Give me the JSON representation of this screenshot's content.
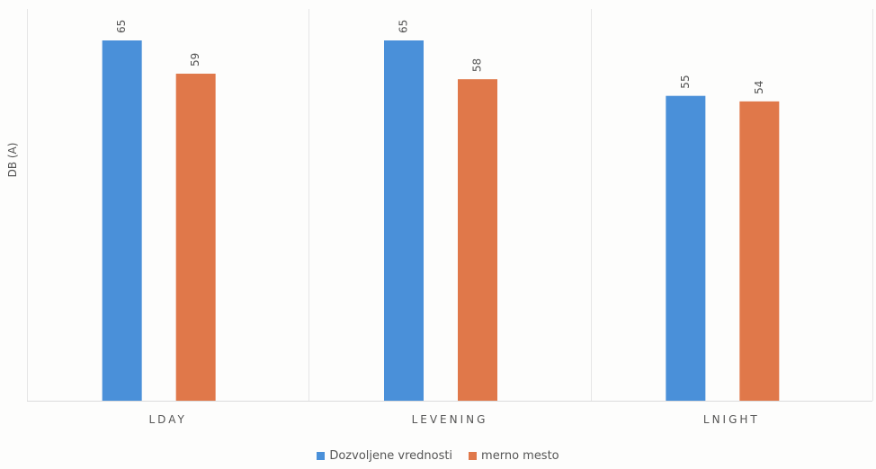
{
  "chart_data": {
    "type": "bar",
    "title": "",
    "xlabel": "",
    "ylabel": "DB (A)",
    "categories": [
      "LDAY",
      "LEVENING",
      "LNIGHT"
    ],
    "series": [
      {
        "name": "Dozvoljene vrednosti",
        "values": [
          65,
          65,
          55
        ],
        "color": "#4a90d9"
      },
      {
        "name": "merno mesto",
        "values": [
          59,
          58,
          54
        ],
        "color": "#e0784a"
      }
    ],
    "ylim": [
      0,
      65
    ],
    "grid": false,
    "legend_position": "bottom",
    "data_labels": true
  },
  "colors": {
    "divider": "#e6e6e6",
    "axis_text": "#555555"
  }
}
